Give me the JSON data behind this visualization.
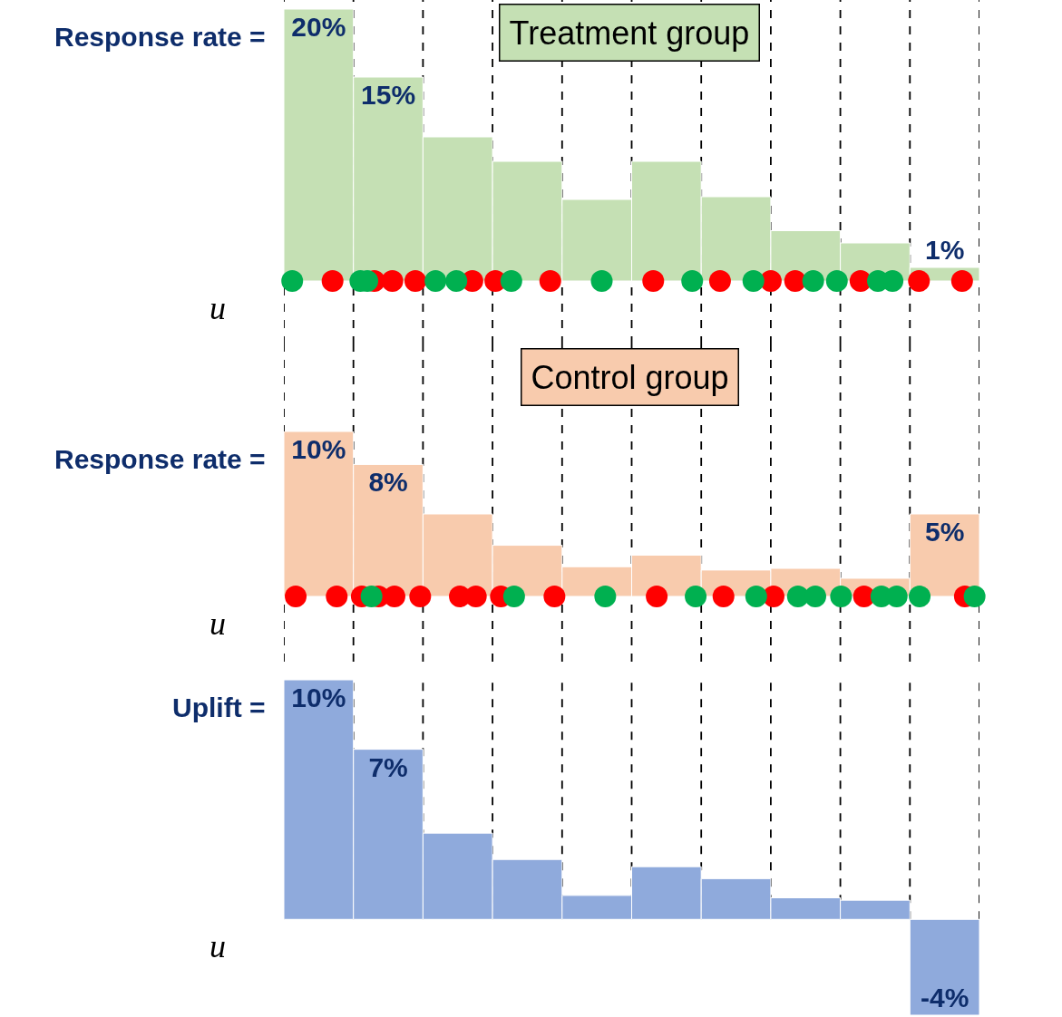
{
  "chart_data": [
    {
      "type": "bar",
      "title": "Treatment group",
      "xlabel": "u",
      "categories": [
        null,
        null,
        null,
        null,
        null,
        null,
        null,
        null,
        null,
        null
      ],
      "tick_labels": false,
      "grid": "x",
      "annotations": [
        "Response rate ="
      ],
      "color": "#c5e0b4",
      "values": [
        20,
        15,
        10.6,
        8.8,
        6,
        8.8,
        6.2,
        3.7,
        2.8,
        1
      ],
      "value_labels": [
        "20%",
        "15%",
        null,
        null,
        null,
        null,
        null,
        null,
        null,
        "1%"
      ]
    },
    {
      "type": "bar",
      "title": "Control group",
      "xlabel": "u",
      "categories": [
        null,
        null,
        null,
        null,
        null,
        null,
        null,
        null,
        null,
        null
      ],
      "tick_labels": false,
      "grid": "x",
      "annotations": [
        "Response rate ="
      ],
      "color": "#f8cbad",
      "values": [
        10,
        8,
        5,
        3.1,
        1.8,
        2.5,
        1.6,
        1.7,
        1.1,
        5
      ],
      "value_labels": [
        "10%",
        "8%",
        null,
        null,
        null,
        null,
        null,
        null,
        null,
        "5%"
      ]
    },
    {
      "type": "bar",
      "xlabel": "u",
      "categories": [
        null,
        null,
        null,
        null,
        null,
        null,
        null,
        null,
        null,
        null
      ],
      "tick_labels": false,
      "grid": "x",
      "annotations": [
        "Uplift ="
      ],
      "color": "#8faadc",
      "values": [
        10,
        7.1,
        3.6,
        2.5,
        1,
        2.2,
        1.7,
        0.9,
        0.8,
        -4
      ],
      "value_labels": [
        "10%",
        "7%",
        null,
        null,
        null,
        null,
        null,
        null,
        null,
        "-4%"
      ]
    }
  ]
}
